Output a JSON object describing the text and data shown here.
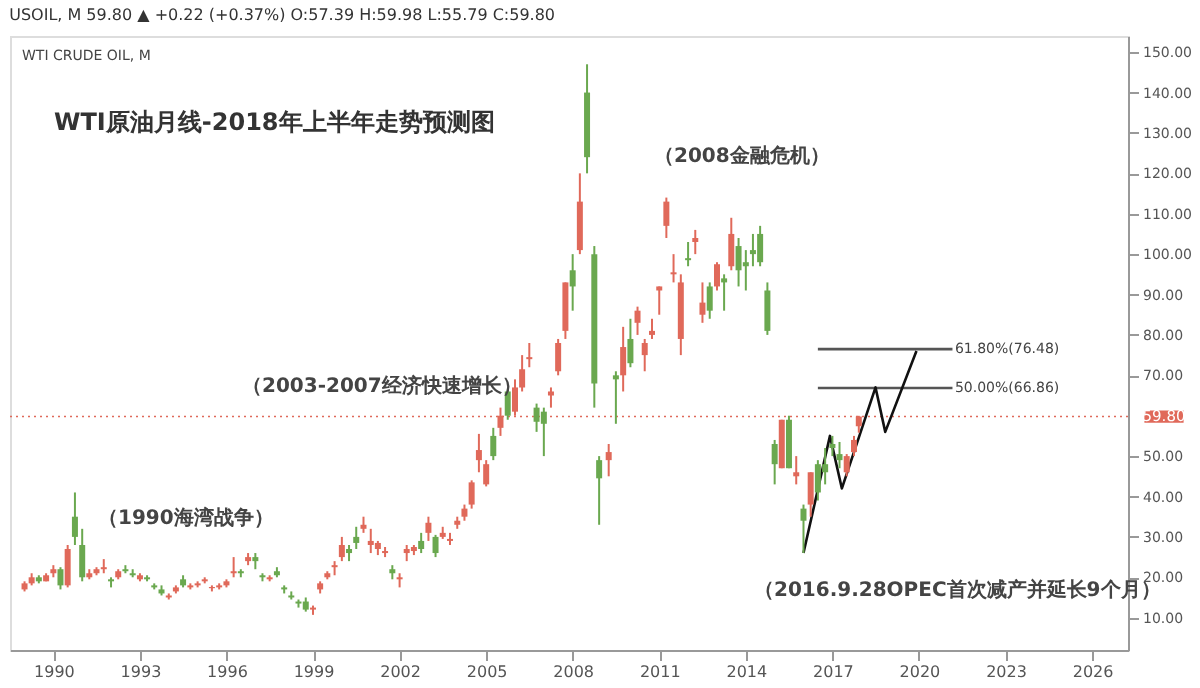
{
  "chart_data": {
    "type": "candlestick",
    "title": "WTI原油月线-2018年上半年走势预测图",
    "subtitle": "USOIL, M  59.80 ▲ +0.22 (+0.37%) O:57.39 H:59.98 L:55.79 C:59.80",
    "annotations": [
      "WTI CRUDE OIL, M",
      "（1990海湾战争）",
      "（2003-2007经济快速增长）",
      "（2008金融危机）",
      "（2016.9.28OPEC首次减产并延长9个月）",
      {
        "text": "61.80%(76.48)",
        "x": "2021-04",
        "y": 76.48
      },
      {
        "text": "50.00%(66.86)",
        "x": "2021-04",
        "y": 66.86
      }
    ],
    "ref_lines": [
      {
        "axis": "y",
        "value": 59.8,
        "label": "59.80",
        "color": "#e0695a",
        "line_style": "dotted"
      }
    ],
    "x": [
      "1989-01",
      "1989-04",
      "1989-07",
      "1989-10",
      "1990-01",
      "1990-04",
      "1990-07",
      "1990-10",
      "1991-01",
      "1991-04",
      "1991-07",
      "1991-10",
      "1992-01",
      "1992-04",
      "1992-07",
      "1992-10",
      "1993-01",
      "1993-04",
      "1993-07",
      "1993-10",
      "1994-01",
      "1994-04",
      "1994-07",
      "1994-10",
      "1995-01",
      "1995-04",
      "1995-07",
      "1995-10",
      "1996-01",
      "1996-04",
      "1996-07",
      "1996-10",
      "1997-01",
      "1997-04",
      "1997-07",
      "1997-10",
      "1998-01",
      "1998-04",
      "1998-07",
      "1998-10",
      "1999-01",
      "1999-04",
      "1999-07",
      "1999-10",
      "2000-01",
      "2000-04",
      "2000-07",
      "2000-10",
      "2001-01",
      "2001-04",
      "2001-07",
      "2001-10",
      "2002-01",
      "2002-04",
      "2002-07",
      "2002-10",
      "2003-01",
      "2003-04",
      "2003-07",
      "2003-10",
      "2004-01",
      "2004-04",
      "2004-07",
      "2004-10",
      "2005-01",
      "2005-04",
      "2005-07",
      "2005-10",
      "2006-01",
      "2006-04",
      "2006-07",
      "2006-10",
      "2007-01",
      "2007-04",
      "2007-07",
      "2007-10",
      "2008-01",
      "2008-04",
      "2008-07",
      "2008-10",
      "2008-12",
      "2009-04",
      "2009-07",
      "2009-10",
      "2010-01",
      "2010-04",
      "2010-07",
      "2010-10",
      "2011-01",
      "2011-04",
      "2011-07",
      "2011-10",
      "2012-01",
      "2012-04",
      "2012-07",
      "2012-10",
      "2013-01",
      "2013-04",
      "2013-07",
      "2013-10",
      "2014-01",
      "2014-04",
      "2014-07",
      "2014-10",
      "2015-01",
      "2015-04",
      "2015-07",
      "2015-10",
      "2016-01",
      "2016-04",
      "2016-07",
      "2016-10",
      "2017-01",
      "2017-04",
      "2017-07",
      "2017-10",
      "2017-12"
    ],
    "ohlc": [
      [
        17,
        19,
        16.5,
        18.5
      ],
      [
        18.5,
        21,
        18,
        20
      ],
      [
        20,
        20.5,
        18.5,
        19
      ],
      [
        19,
        21,
        19,
        20.5
      ],
      [
        21,
        23,
        20,
        22
      ],
      [
        22,
        22.5,
        17,
        18
      ],
      [
        18,
        28,
        17.5,
        27
      ],
      [
        35,
        41,
        28,
        30
      ],
      [
        28,
        32,
        19,
        20
      ],
      [
        20,
        22,
        19.5,
        21
      ],
      [
        21,
        22.5,
        20.5,
        22
      ],
      [
        22,
        24.5,
        21,
        22.5
      ],
      [
        19.5,
        20,
        17.5,
        19
      ],
      [
        20,
        22,
        19.5,
        21.5
      ],
      [
        22,
        23,
        21,
        21.5
      ],
      [
        21,
        22,
        20,
        20.5
      ],
      [
        19.5,
        21,
        19,
        20.5
      ],
      [
        20,
        20.5,
        19,
        19.5
      ],
      [
        18,
        18.5,
        17,
        17.5
      ],
      [
        17,
        18,
        15.5,
        16
      ],
      [
        15,
        16,
        14.5,
        15.5
      ],
      [
        16.5,
        18,
        16,
        17.5
      ],
      [
        19.5,
        20.5,
        17.5,
        18
      ],
      [
        17.5,
        18.5,
        17,
        18
      ],
      [
        18,
        19,
        17.5,
        18.5
      ],
      [
        19,
        20,
        18.5,
        19.5
      ],
      [
        17.3,
        18,
        16.5,
        17.6
      ],
      [
        17.5,
        18.5,
        17,
        18
      ],
      [
        18,
        19.5,
        17.5,
        19
      ],
      [
        21,
        25,
        20,
        21.5
      ],
      [
        21.5,
        22,
        20,
        21
      ],
      [
        24,
        26,
        23,
        25
      ],
      [
        25,
        26,
        22,
        24
      ],
      [
        20.5,
        21,
        19,
        20
      ],
      [
        19.5,
        20.5,
        19,
        20
      ],
      [
        21.5,
        22.5,
        20,
        20.5
      ],
      [
        17.5,
        18,
        16,
        17
      ],
      [
        15.5,
        16.5,
        14.5,
        15
      ],
      [
        14,
        14.5,
        12.5,
        13.5
      ],
      [
        14,
        15,
        11.5,
        12
      ],
      [
        12,
        13,
        10.7,
        12.5
      ],
      [
        17,
        19,
        16,
        18.5
      ],
      [
        20,
        21.5,
        19.5,
        21
      ],
      [
        22.5,
        24,
        20.5,
        23
      ],
      [
        25,
        30,
        24,
        28
      ],
      [
        27,
        28,
        24,
        26
      ],
      [
        30,
        32.5,
        27,
        28.5
      ],
      [
        32,
        35,
        31,
        33
      ],
      [
        28,
        32,
        26,
        29
      ],
      [
        27,
        29,
        25.5,
        28.5
      ],
      [
        26,
        27.5,
        25,
        26.5
      ],
      [
        22,
        23,
        19.5,
        21
      ],
      [
        19.5,
        21,
        17.5,
        20
      ],
      [
        26,
        28,
        24,
        27
      ],
      [
        26.5,
        28,
        25.5,
        27.5
      ],
      [
        29,
        31,
        26,
        27
      ],
      [
        31,
        35,
        29,
        33.5
      ],
      [
        30,
        30.5,
        25,
        26
      ],
      [
        30,
        32.5,
        29.5,
        31
      ],
      [
        29,
        31,
        28,
        29.5
      ],
      [
        33,
        35,
        32,
        34
      ],
      [
        35,
        38,
        34,
        37
      ],
      [
        38,
        44,
        37,
        43.5
      ],
      [
        49,
        55.5,
        46,
        51.5
      ],
      [
        43,
        49,
        42.5,
        48
      ],
      [
        55,
        57,
        49,
        50
      ],
      [
        57,
        62,
        55,
        60
      ],
      [
        66,
        66.5,
        59,
        60
      ],
      [
        61,
        69,
        60,
        67
      ],
      [
        67,
        75,
        66,
        71.5
      ],
      [
        74,
        78,
        72,
        74.5
      ],
      [
        62,
        63,
        56,
        58.5
      ],
      [
        61,
        62,
        50,
        58
      ],
      [
        65,
        67,
        62,
        66
      ],
      [
        71,
        79,
        70,
        78
      ],
      [
        81,
        93,
        79,
        93
      ],
      [
        96,
        100,
        86,
        92
      ],
      [
        101,
        120,
        100,
        113
      ],
      [
        140,
        147,
        120,
        124
      ],
      [
        100,
        102,
        62,
        68
      ],
      [
        49,
        50,
        33,
        44.5
      ],
      [
        49,
        53,
        45,
        51
      ],
      [
        70,
        71,
        58,
        69
      ],
      [
        70,
        82,
        66,
        77
      ],
      [
        79,
        84,
        72,
        73
      ],
      [
        83,
        87,
        80,
        86
      ],
      [
        75,
        79,
        71,
        78
      ],
      [
        80,
        84,
        79,
        81
      ],
      [
        91,
        92,
        85,
        92
      ],
      [
        107,
        114,
        104,
        113
      ],
      [
        95,
        100,
        93,
        95.5
      ],
      [
        79,
        95,
        75,
        93
      ],
      [
        99,
        103,
        97,
        98.5
      ],
      [
        103,
        106,
        100,
        104
      ],
      [
        85,
        93,
        83,
        88
      ],
      [
        92,
        93,
        84,
        86
      ],
      [
        92,
        98,
        91,
        97.5
      ],
      [
        94,
        95,
        86,
        93
      ],
      [
        97,
        109,
        96,
        105
      ],
      [
        102,
        104,
        92,
        96
      ],
      [
        98,
        101,
        91,
        97
      ],
      [
        101,
        105,
        97,
        100
      ],
      [
        105,
        107,
        97,
        98
      ],
      [
        91,
        93,
        80,
        81
      ],
      [
        53,
        54,
        43,
        48
      ],
      [
        47,
        59,
        47,
        59
      ],
      [
        59,
        60,
        47,
        47
      ],
      [
        45,
        50,
        43,
        46
      ],
      [
        37,
        38,
        26,
        34
      ],
      [
        38,
        46,
        35,
        46
      ],
      [
        48,
        49,
        39,
        41
      ],
      [
        48,
        52,
        43,
        46
      ],
      [
        53,
        55,
        50,
        52
      ],
      [
        50.5,
        53.5,
        47,
        49
      ],
      [
        46,
        50.5,
        45,
        50
      ],
      [
        51,
        55,
        50,
        54
      ],
      [
        57.39,
        59.98,
        55.79,
        59.8
      ]
    ],
    "colors": [
      "#e0695a",
      "#e0695a",
      "#6aa84f",
      "#e0695a",
      "#e0695a",
      "#6aa84f",
      "#e0695a",
      "#6aa84f",
      "#6aa84f",
      "#e0695a",
      "#e0695a",
      "#e0695a",
      "#6aa84f",
      "#e0695a",
      "#6aa84f",
      "#6aa84f",
      "#e0695a",
      "#6aa84f",
      "#6aa84f",
      "#6aa84f",
      "#e0695a",
      "#e0695a",
      "#6aa84f",
      "#e0695a",
      "#e0695a",
      "#e0695a",
      "#e0695a",
      "#e0695a",
      "#e0695a",
      "#e0695a",
      "#6aa84f",
      "#e0695a",
      "#6aa84f",
      "#6aa84f",
      "#e0695a",
      "#6aa84f",
      "#6aa84f",
      "#6aa84f",
      "#6aa84f",
      "#6aa84f",
      "#e0695a",
      "#e0695a",
      "#e0695a",
      "#e0695a",
      "#e0695a",
      "#6aa84f",
      "#6aa84f",
      "#e0695a",
      "#e0695a",
      "#e0695a",
      "#e0695a",
      "#6aa84f",
      "#e0695a",
      "#e0695a",
      "#e0695a",
      "#6aa84f",
      "#e0695a",
      "#6aa84f",
      "#e0695a",
      "#e0695a",
      "#e0695a",
      "#e0695a",
      "#e0695a",
      "#e0695a",
      "#e0695a",
      "#6aa84f",
      "#e0695a",
      "#6aa84f",
      "#e0695a",
      "#e0695a",
      "#e0695a",
      "#6aa84f",
      "#6aa84f",
      "#e0695a",
      "#e0695a",
      "#e0695a",
      "#6aa84f",
      "#e0695a",
      "#6aa84f",
      "#6aa84f",
      "#6aa84f",
      "#e0695a",
      "#6aa84f",
      "#e0695a",
      "#6aa84f",
      "#e0695a",
      "#e0695a",
      "#e0695a",
      "#e0695a",
      "#e0695a",
      "#e0695a",
      "#e0695a",
      "#6aa84f",
      "#e0695a",
      "#e0695a",
      "#6aa84f",
      "#e0695a",
      "#6aa84f",
      "#e0695a",
      "#6aa84f",
      "#6aa84f",
      "#6aa84f",
      "#6aa84f",
      "#6aa84f",
      "#6aa84f",
      "#e0695a",
      "#6aa84f",
      "#e0695a",
      "#6aa84f",
      "#e0695a",
      "#6aa84f",
      "#6aa84f",
      "#6aa84f",
      "#6aa84f",
      "#e0695a",
      "#e0695a",
      "#e0695a"
    ],
    "series": [
      {
        "type": "line",
        "color": "#555555",
        "x": [
          "2016-07",
          "2021-03"
        ],
        "values": [
          76.48,
          76.48
        ]
      },
      {
        "type": "line",
        "color": "#555555",
        "x": [
          "2016-07",
          "2021-03"
        ],
        "values": [
          66.86,
          66.86
        ]
      },
      {
        "type": "line",
        "color": "#111111",
        "x": [
          "2016-01",
          "2016-12",
          "2017-05",
          "2018-07",
          "2018-11",
          "2019-12"
        ],
        "values": [
          26,
          55,
          42,
          67,
          56,
          76
        ]
      }
    ],
    "xlim": [
      "1988-07",
      "2027-04"
    ],
    "xticks": [
      "1990",
      "1993",
      "1996",
      "1999",
      "2002",
      "2005",
      "2008",
      "2011",
      "2014",
      "2017",
      "2020",
      "2023",
      "2026"
    ],
    "ylim": [
      2,
      154
    ],
    "yticks": [
      {
        "value": 10,
        "label": "10.00"
      },
      {
        "value": 20,
        "label": "20.00"
      },
      {
        "value": 30,
        "label": "30.00"
      },
      {
        "value": 40,
        "label": "40.00"
      },
      {
        "value": 50,
        "label": "50.00"
      },
      {
        "value": 70,
        "label": "70.00"
      },
      {
        "value": 80,
        "label": "80.00"
      },
      {
        "value": 90,
        "label": "90.00"
      },
      {
        "value": 100,
        "label": "100.00"
      },
      {
        "value": 110,
        "label": "110.00"
      },
      {
        "value": 120,
        "label": "120.00"
      },
      {
        "value": 130,
        "label": "130.00"
      },
      {
        "value": 140,
        "label": "140.00"
      },
      {
        "value": 150,
        "label": "150.00"
      }
    ],
    "grid": false
  }
}
